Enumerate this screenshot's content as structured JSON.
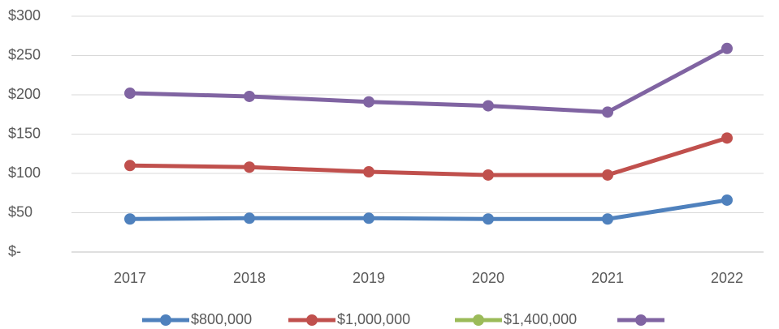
{
  "chart_data": {
    "type": "line",
    "categories": [
      "2017",
      "2018",
      "2019",
      "2020",
      "2021",
      "2022"
    ],
    "series": [
      {
        "name": "$800,000",
        "color": "#4f81bd",
        "values": [
          42,
          43,
          43,
          42,
          42,
          66
        ]
      },
      {
        "name": "$1,000,000",
        "color": "#c0504d",
        "values": [
          110,
          108,
          102,
          98,
          98,
          145
        ]
      },
      {
        "name": "$1,400,000",
        "color": "#9bbb59",
        "values": [
          null,
          null,
          null,
          null,
          null,
          null
        ]
      },
      {
        "color": "#8064a2",
        "values": [
          202,
          198,
          191,
          186,
          178,
          259
        ]
      }
    ],
    "ylim": [
      0,
      300
    ],
    "yticks": [
      {
        "value": 0,
        "label": "$-"
      },
      {
        "value": 50,
        "label": "$50"
      },
      {
        "value": 100,
        "label": "$100"
      },
      {
        "value": 150,
        "label": "$150"
      },
      {
        "value": 200,
        "label": "$200"
      },
      {
        "value": 250,
        "label": "$250"
      },
      {
        "value": 300,
        "label": "$300"
      }
    ],
    "grid": true
  }
}
